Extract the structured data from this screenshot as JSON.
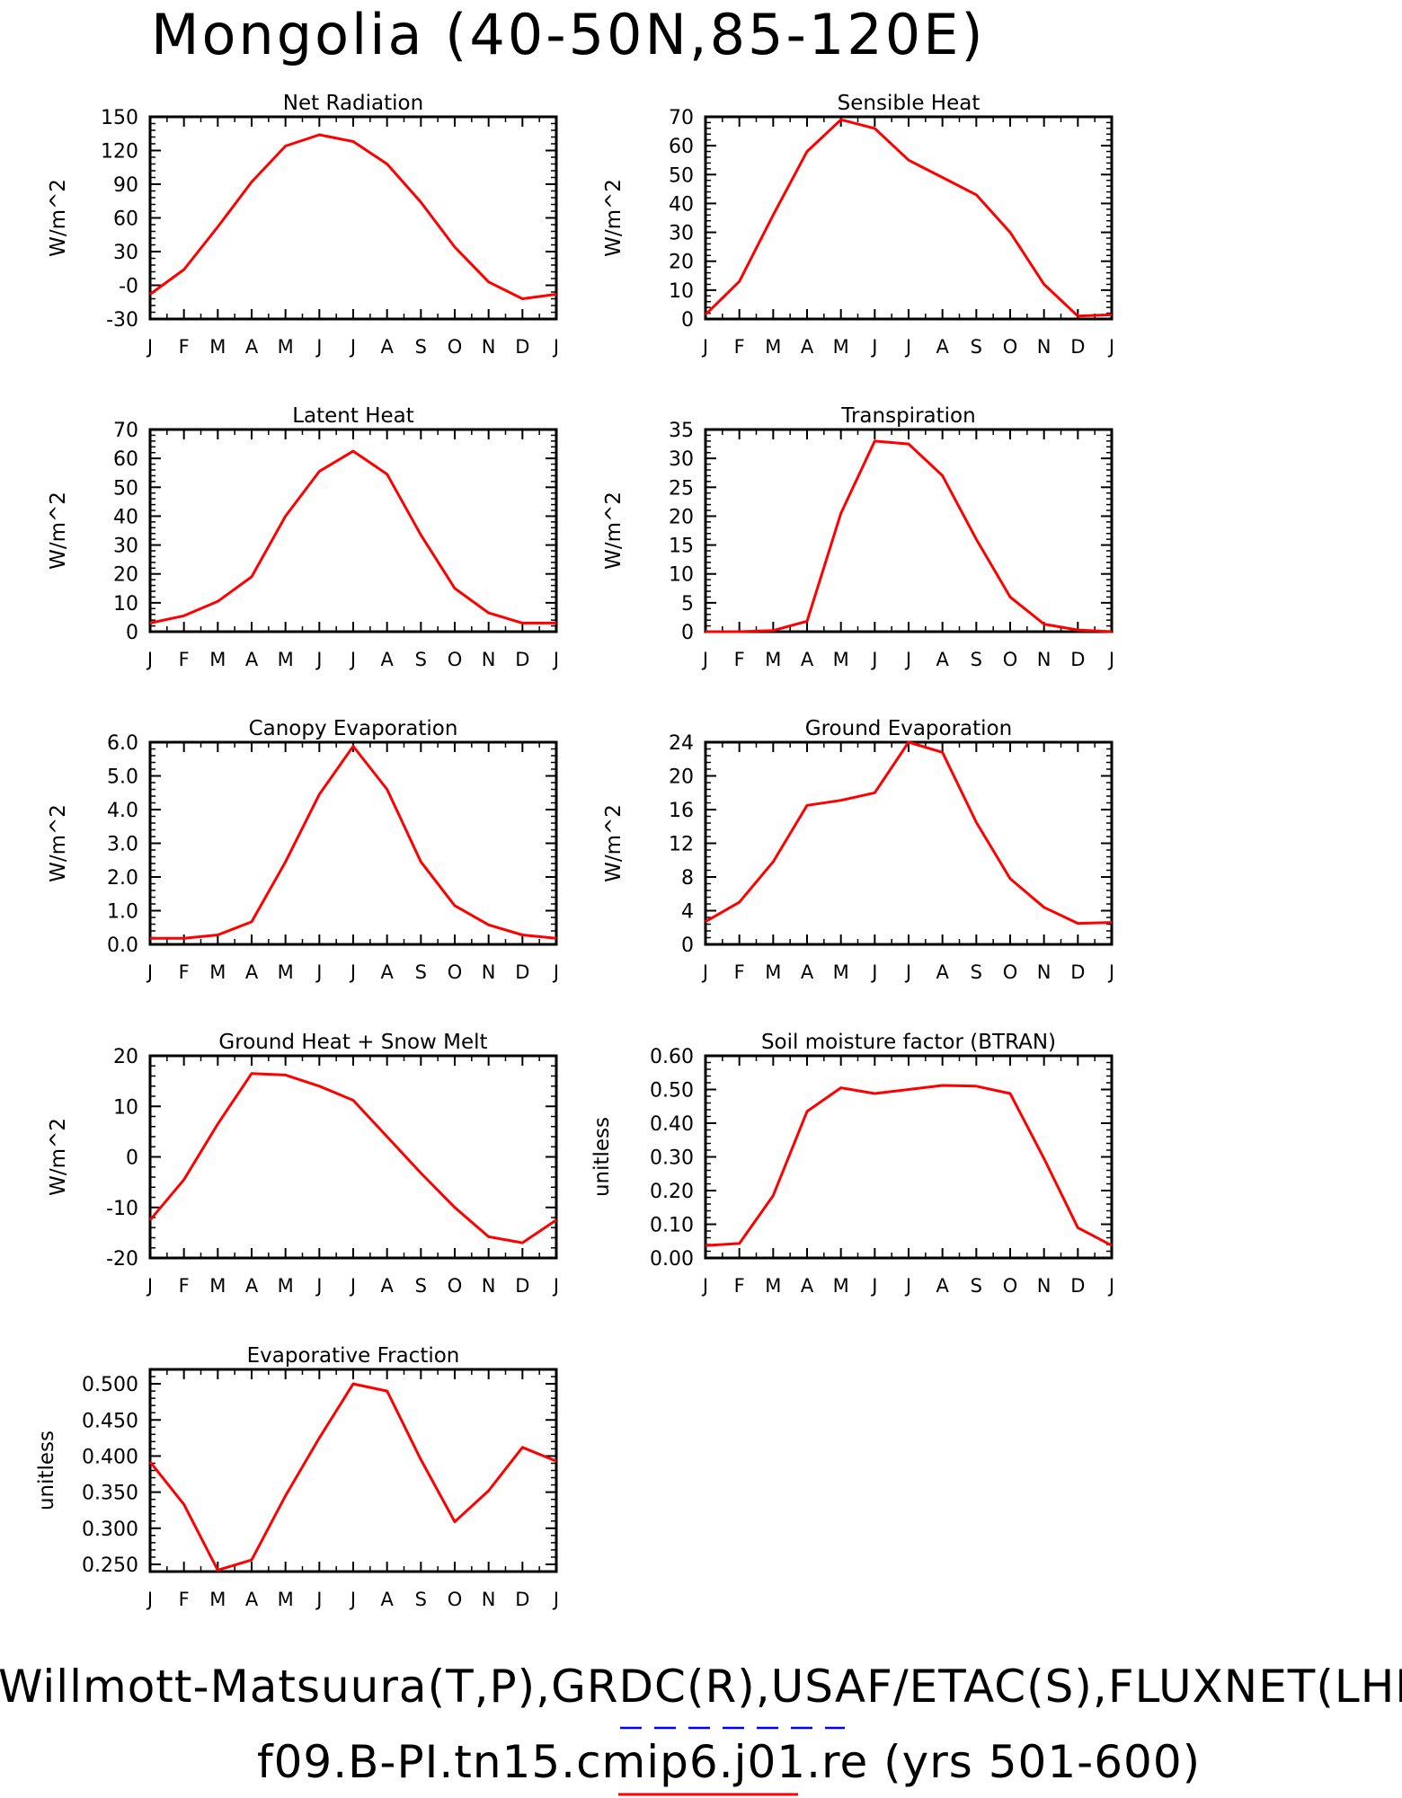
{
  "title": "Mongolia (40-50N,85-120E)",
  "footer": {
    "obs_sources": "Willmott-Matsuura(T,P),GRDC(R),USAF/ETAC(S),FLUXNET(LHF,GP",
    "case": "f09.B-PI.tn15.cmip6.j01.re (yrs 501-600)"
  },
  "colors": {
    "model": "#ff0000",
    "obs": "#0000ff",
    "axes": "#000000"
  },
  "chart_data": [
    {
      "type": "line",
      "title": "Net Radiation",
      "ylabel": "W/m^2",
      "categories": [
        "J",
        "F",
        "M",
        "A",
        "M",
        "J",
        "J",
        "A",
        "S",
        "O",
        "N",
        "D",
        "J"
      ],
      "ylim": [
        -30,
        150
      ],
      "yticks": [
        -30,
        0,
        30,
        60,
        90,
        120,
        150
      ],
      "ytick_labels": [
        "-30",
        "-0",
        "30",
        "60",
        "90",
        "120",
        "150"
      ],
      "series": [
        {
          "values": [
            -8,
            14,
            52,
            92,
            124,
            134,
            128,
            108,
            74,
            34,
            3,
            -12,
            -8
          ]
        }
      ]
    },
    {
      "type": "line",
      "title": "Sensible Heat",
      "ylabel": "W/m^2",
      "categories": [
        "J",
        "F",
        "M",
        "A",
        "M",
        "J",
        "J",
        "A",
        "S",
        "O",
        "N",
        "D",
        "J"
      ],
      "ylim": [
        0,
        70
      ],
      "yticks": [
        0,
        10,
        20,
        30,
        40,
        50,
        60,
        70
      ],
      "ytick_labels": [
        "0",
        "10",
        "20",
        "30",
        "40",
        "50",
        "60",
        "70"
      ],
      "series": [
        {
          "values": [
            1.5,
            13,
            36,
            58,
            69,
            66,
            55,
            49,
            43,
            30,
            12,
            1,
            1.5
          ]
        }
      ]
    },
    {
      "type": "line",
      "title": "Latent Heat",
      "ylabel": "W/m^2",
      "categories": [
        "J",
        "F",
        "M",
        "A",
        "M",
        "J",
        "J",
        "A",
        "S",
        "O",
        "N",
        "D",
        "J"
      ],
      "ylim": [
        0,
        70
      ],
      "yticks": [
        0,
        10,
        20,
        30,
        40,
        50,
        60,
        70
      ],
      "ytick_labels": [
        "0",
        "10",
        "20",
        "30",
        "40",
        "50",
        "60",
        "70"
      ],
      "series": [
        {
          "values": [
            3,
            5.5,
            10.5,
            19,
            40,
            55.5,
            62.5,
            54.5,
            33.5,
            15,
            6.5,
            3,
            3
          ]
        }
      ]
    },
    {
      "type": "line",
      "title": "Transpiration",
      "ylabel": "W/m^2",
      "categories": [
        "J",
        "F",
        "M",
        "A",
        "M",
        "J",
        "J",
        "A",
        "S",
        "O",
        "N",
        "D",
        "J"
      ],
      "ylim": [
        0,
        35
      ],
      "yticks": [
        0,
        5,
        10,
        15,
        20,
        25,
        30,
        35
      ],
      "ytick_labels": [
        "0",
        "5",
        "10",
        "15",
        "20",
        "25",
        "30",
        "35"
      ],
      "series": [
        {
          "values": [
            0,
            0,
            0.2,
            1.8,
            20.5,
            33,
            32.5,
            27,
            16,
            6,
            1.3,
            0.3,
            0
          ]
        }
      ]
    },
    {
      "type": "line",
      "title": "Canopy Evaporation",
      "ylabel": "W/m^2",
      "categories": [
        "J",
        "F",
        "M",
        "A",
        "M",
        "J",
        "J",
        "A",
        "S",
        "O",
        "N",
        "D",
        "J"
      ],
      "ylim": [
        0,
        6
      ],
      "yticks": [
        0,
        1,
        2,
        3,
        4,
        5,
        6
      ],
      "ytick_labels": [
        "0.0",
        "1.0",
        "2.0",
        "3.0",
        "4.0",
        "5.0",
        "6.0"
      ],
      "series": [
        {
          "values": [
            0.18,
            0.18,
            0.28,
            0.67,
            2.45,
            4.45,
            5.88,
            4.6,
            2.45,
            1.15,
            0.58,
            0.28,
            0.18
          ]
        }
      ]
    },
    {
      "type": "line",
      "title": "Ground Evaporation",
      "ylabel": "W/m^2",
      "categories": [
        "J",
        "F",
        "M",
        "A",
        "M",
        "J",
        "J",
        "A",
        "S",
        "O",
        "N",
        "D",
        "J"
      ],
      "ylim": [
        0,
        24
      ],
      "yticks": [
        0,
        4,
        8,
        12,
        16,
        20,
        24
      ],
      "ytick_labels": [
        "0",
        "4",
        "8",
        "12",
        "16",
        "20",
        "24"
      ],
      "series": [
        {
          "values": [
            2.7,
            5,
            9.8,
            16.5,
            17.1,
            18,
            24,
            22.8,
            14.5,
            7.8,
            4.4,
            2.5,
            2.6
          ]
        }
      ]
    },
    {
      "type": "line",
      "title": "Ground Heat + Snow Melt",
      "ylabel": "W/m^2",
      "categories": [
        "J",
        "F",
        "M",
        "A",
        "M",
        "J",
        "J",
        "A",
        "S",
        "O",
        "N",
        "D",
        "J"
      ],
      "ylim": [
        -20,
        20
      ],
      "yticks": [
        -20,
        -10,
        0,
        10,
        20
      ],
      "ytick_labels": [
        "-20",
        "-10",
        "0",
        "10",
        "20"
      ],
      "series": [
        {
          "values": [
            -12.5,
            -4.5,
            6.5,
            16.5,
            16.2,
            14,
            11.2,
            4,
            -3.2,
            -10,
            -15.8,
            -17,
            -12.5
          ]
        }
      ]
    },
    {
      "type": "line",
      "title": "Soil moisture factor (BTRAN)",
      "ylabel": "unitless",
      "categories": [
        "J",
        "F",
        "M",
        "A",
        "M",
        "J",
        "J",
        "A",
        "S",
        "O",
        "N",
        "D",
        "J"
      ],
      "ylim": [
        0,
        0.6
      ],
      "yticks": [
        0,
        0.1,
        0.2,
        0.3,
        0.4,
        0.5,
        0.6
      ],
      "ytick_labels": [
        "0.00",
        "0.10",
        "0.20",
        "0.30",
        "0.40",
        "0.50",
        "0.60"
      ],
      "series": [
        {
          "values": [
            0.037,
            0.043,
            0.185,
            0.435,
            0.505,
            0.488,
            0.5,
            0.512,
            0.51,
            0.488,
            0.295,
            0.09,
            0.037
          ]
        }
      ]
    },
    {
      "type": "line",
      "title": "Evaporative Fraction",
      "ylabel": "unitless",
      "categories": [
        "J",
        "F",
        "M",
        "A",
        "M",
        "J",
        "J",
        "A",
        "S",
        "O",
        "N",
        "D",
        "J"
      ],
      "ylim": [
        0.24,
        0.52
      ],
      "yticks": [
        0.25,
        0.3,
        0.35,
        0.4,
        0.45,
        0.5
      ],
      "ytick_labels": [
        "0.250",
        "0.300",
        "0.350",
        "0.400",
        "0.450",
        "0.500"
      ],
      "series": [
        {
          "values": [
            0.392,
            0.333,
            0.242,
            0.256,
            0.345,
            0.425,
            0.5,
            0.49,
            0.395,
            0.309,
            0.352,
            0.412,
            0.393
          ]
        }
      ]
    }
  ]
}
